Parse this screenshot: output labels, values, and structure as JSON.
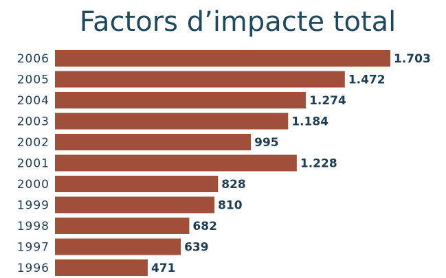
{
  "chart_data": {
    "type": "bar",
    "orientation": "horizontal",
    "title": "Factors d’impacte total",
    "categories": [
      "2006",
      "2005",
      "2004",
      "2003",
      "2002",
      "2001",
      "2000",
      "1999",
      "1998",
      "1997",
      "1996"
    ],
    "values": [
      1703,
      1472,
      1274,
      1184,
      995,
      1228,
      828,
      810,
      682,
      639,
      471
    ],
    "value_labels": [
      "1.703",
      "1.472",
      "1.274",
      "1.184",
      "995",
      "1.228",
      "828",
      "810",
      "682",
      "639",
      "471"
    ],
    "color": "#a0503a"
  }
}
